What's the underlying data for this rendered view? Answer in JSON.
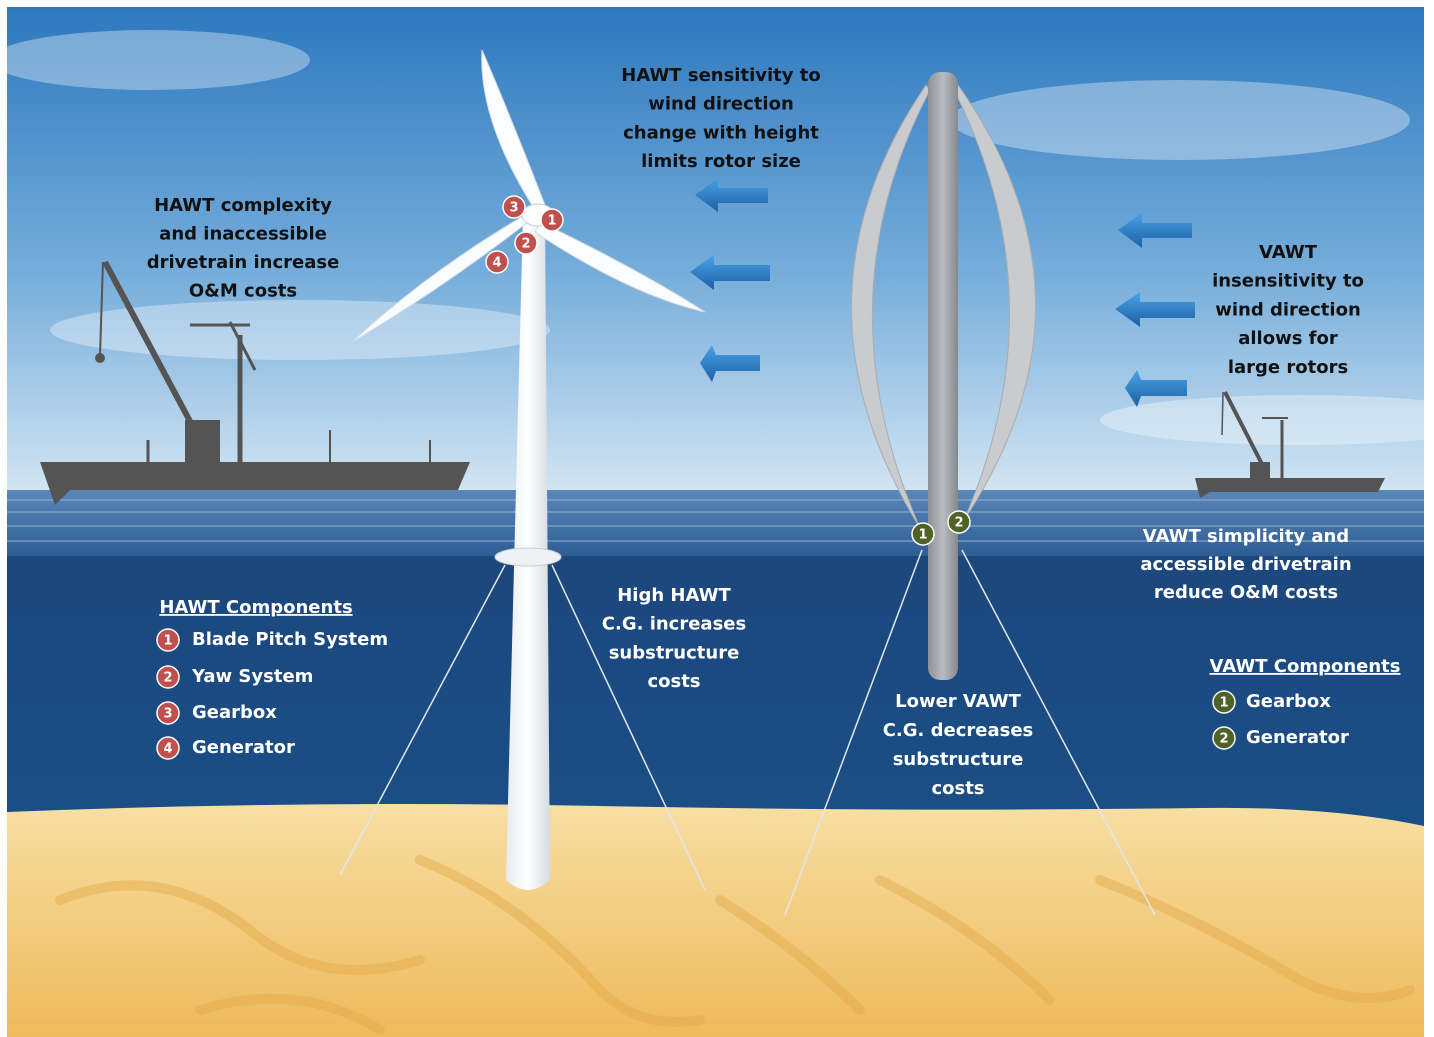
{
  "annotations": [
    {
      "lines": [
        "HAWT complexity",
        "and inaccessible",
        "drivetrain increase",
        "O&M costs"
      ]
    },
    {
      "lines": [
        "HAWT sensitivity to",
        "wind direction",
        "change with height",
        "limits rotor size"
      ]
    },
    {
      "lines": [
        "VAWT",
        "insensitivity to",
        "wind direction",
        "allows for",
        "large rotors"
      ]
    },
    {
      "lines": [
        "VAWT simplicity and",
        "accessible drivetrain",
        "reduce O&M costs"
      ]
    },
    {
      "lines": [
        "High HAWT",
        "C.G. increases",
        "substructure",
        "costs"
      ]
    },
    {
      "lines": [
        "Lower VAWT",
        "C.G. decreases",
        "substructure",
        "costs"
      ]
    }
  ],
  "hawt_components": {
    "title": "HAWT Components",
    "items": [
      {
        "number": "1",
        "label": "Blade Pitch System"
      },
      {
        "number": "2",
        "label": "Yaw System"
      },
      {
        "number": "3",
        "label": "Gearbox"
      },
      {
        "number": "4",
        "label": "Generator"
      }
    ]
  },
  "vawt_components": {
    "title": "VAWT Components",
    "items": [
      {
        "number": "1",
        "label": "Gearbox"
      },
      {
        "number": "2",
        "label": "Generator"
      }
    ]
  }
}
